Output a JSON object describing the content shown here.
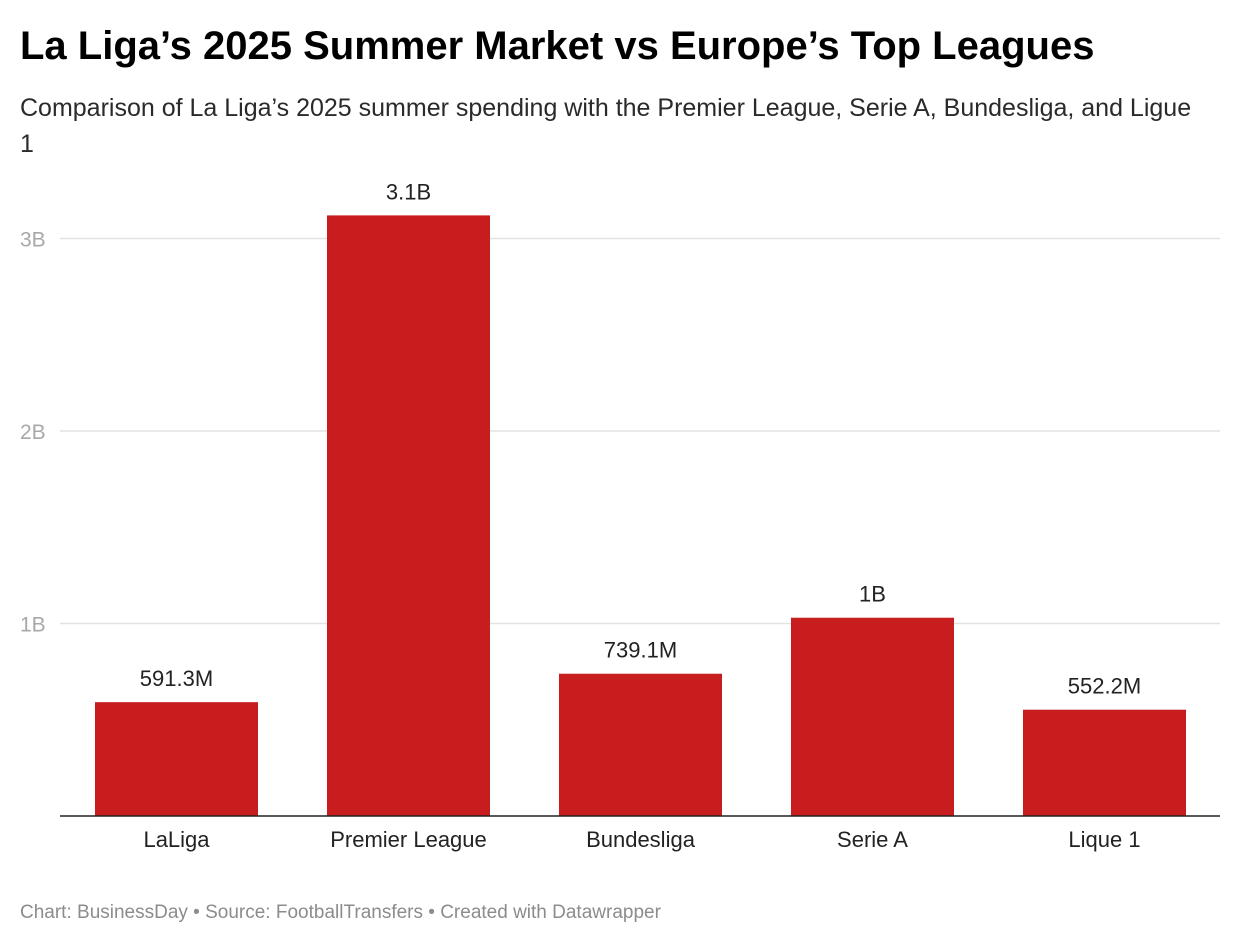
{
  "header": {
    "title": "La Liga’s 2025 Summer Market vs Europe’s Top Leagues",
    "subtitle": "Comparison of La Liga’s 2025 summer spending with the Premier League, Serie A, Bundesliga, and Ligue 1"
  },
  "footer": {
    "credit": "Chart: BusinessDay • Source: FootballTransfers • Created with Datawrapper"
  },
  "colors": {
    "bar": "#c71d1f",
    "grid": "#e2e2e2",
    "tick": "#a8a8a8"
  },
  "chart_data": {
    "type": "bar",
    "title": "La Liga’s 2025 Summer Market vs Europe’s Top Leagues",
    "xlabel": "",
    "ylabel": "",
    "categories": [
      "LaLiga",
      "Premier League",
      "Bundesliga",
      "Serie A",
      "Lique 1"
    ],
    "values": [
      591300000,
      3120000000,
      739100000,
      1030000000,
      552200000
    ],
    "value_labels": [
      "591.3M",
      "3.1B",
      "739.1M",
      "1B",
      "552.2M"
    ],
    "ylim": [
      0,
      3000000000
    ],
    "yticks": [
      1000000000,
      2000000000,
      3000000000
    ],
    "ytick_labels": [
      "1B",
      "2B",
      "3B"
    ],
    "grid": true
  }
}
